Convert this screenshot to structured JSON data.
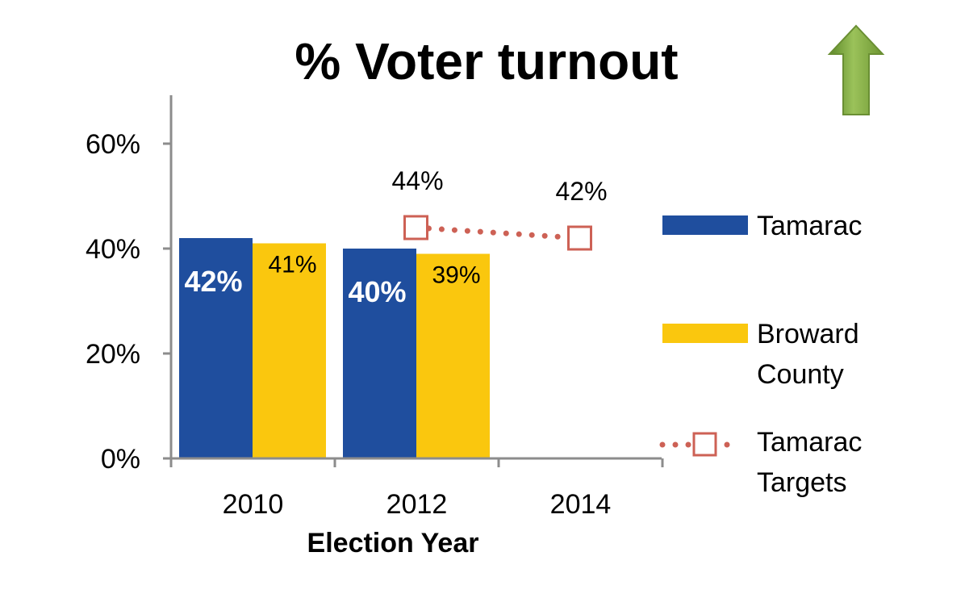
{
  "chart_data": {
    "type": "bar",
    "title": "% Voter turnout",
    "xlabel": "Election Year",
    "ylabel": "",
    "categories": [
      "2010",
      "2012",
      "2014"
    ],
    "ylim": [
      0,
      70
    ],
    "yticks": [
      0,
      20,
      40,
      60
    ],
    "ytick_labels": [
      "0%",
      "20%",
      "40%",
      "60%"
    ],
    "series": [
      {
        "name": "Tamarac",
        "kind": "bar",
        "color": "#1F4E9E",
        "values": [
          42,
          40,
          null
        ],
        "labels": [
          "42%",
          "40%",
          ""
        ]
      },
      {
        "name": "Broward County",
        "kind": "bar",
        "color": "#FAC70E",
        "values": [
          41,
          39,
          null
        ],
        "labels": [
          "41%",
          "39%",
          ""
        ]
      },
      {
        "name": "Tamarac Targets",
        "kind": "line",
        "color": "#CD6155",
        "style": "dotted",
        "marker": "open-square",
        "values": [
          null,
          44,
          42
        ],
        "labels": [
          "",
          "44%",
          "42%"
        ]
      }
    ],
    "legend": {
      "position": "right",
      "entries": [
        {
          "lines": [
            "Tamarac"
          ]
        },
        {
          "lines": [
            "Broward",
            "County"
          ]
        },
        {
          "lines": [
            "Tamarac",
            "Targets"
          ]
        }
      ]
    },
    "annotation": {
      "icon": "up-arrow-icon",
      "color": "#7FA640",
      "position": "top-right"
    }
  }
}
